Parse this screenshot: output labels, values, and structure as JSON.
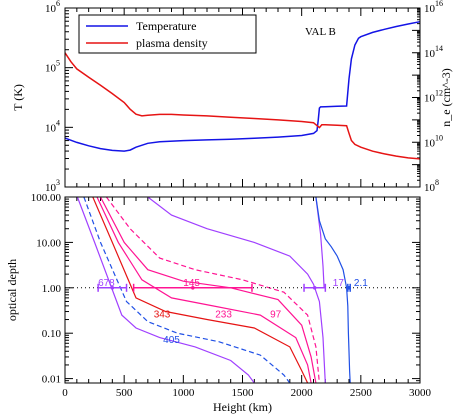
{
  "chart_data": [
    {
      "type": "line",
      "panel": "top",
      "annotation": "VAL B",
      "xlim": [
        0,
        3000
      ],
      "ylim_left": [
        1000,
        1000000
      ],
      "ylim_right": [
        100000000,
        10000000000000000
      ],
      "yscale": "log",
      "grid": false,
      "legend_position": "top-left",
      "ylabel": "T (K)",
      "ylabel_right": "n_e (cm^-3)",
      "yticks_left": [
        {
          "base": "10",
          "exp": "3",
          "value": 1000
        },
        {
          "base": "10",
          "exp": "4",
          "value": 10000
        },
        {
          "base": "10",
          "exp": "5",
          "value": 100000
        },
        {
          "base": "10",
          "exp": "6",
          "value": 1000000
        }
      ],
      "yticks_right": [
        {
          "base": "10",
          "exp": "8",
          "value": 100000000
        },
        {
          "base": "10",
          "exp": "10",
          "value": 10000000000
        },
        {
          "base": "10",
          "exp": "12",
          "value": 1000000000000
        },
        {
          "base": "10",
          "exp": "14",
          "value": 100000000000000
        },
        {
          "base": "10",
          "exp": "16",
          "value": 10000000000000000
        }
      ],
      "series": [
        {
          "name": "Temperature",
          "color": "#1414e6",
          "axis": "left",
          "x": [
            0,
            100,
            200,
            300,
            400,
            500,
            550,
            600,
            700,
            800,
            1000,
            1200,
            1400,
            1600,
            1800,
            2000,
            2100,
            2130,
            2140,
            2150,
            2160,
            2200,
            2300,
            2380,
            2400,
            2420,
            2450,
            2480,
            2500,
            2600,
            2700,
            2800,
            2900,
            3000
          ],
          "y": [
            6600,
            5600,
            4900,
            4400,
            4100,
            4000,
            4150,
            4650,
            5400,
            5750,
            6000,
            6150,
            6300,
            6550,
            6850,
            7300,
            7900,
            8800,
            13000,
            21000,
            22000,
            22200,
            22500,
            22800,
            65000,
            140000,
            240000,
            310000,
            330000,
            390000,
            440000,
            490000,
            540000,
            590000
          ]
        },
        {
          "name": "plasma density",
          "color": "#e61414",
          "axis": "right",
          "x": [
            0,
            50,
            100,
            200,
            300,
            400,
            500,
            550,
            600,
            650,
            700,
            800,
            900,
            1000,
            1200,
            1400,
            1600,
            1800,
            2000,
            2100,
            2150,
            2170,
            2200,
            2300,
            2380,
            2400,
            2420,
            2450,
            2500,
            2600,
            2700,
            2800,
            2900,
            3000
          ],
          "y": [
            100000000000000,
            40000000000000,
            19000000000000,
            8000000000000,
            3500000000000,
            1500000000000,
            600000000000,
            300000000000,
            180000000000,
            150000000000,
            160000000000,
            175000000000,
            175000000000,
            165000000000,
            150000000000,
            130000000000,
            115000000000,
            100000000000,
            85000000000,
            75000000000,
            45000000000,
            60000000000,
            60000000000,
            58000000000,
            55000000000,
            25000000000,
            12000000000,
            8000000000,
            6000000000,
            4000000000,
            3000000000,
            2400000000,
            2000000000,
            1800000000
          ]
        }
      ]
    },
    {
      "type": "line",
      "panel": "bottom",
      "xlabel": "Height (km)",
      "ylabel": "optical depth",
      "xlim": [
        0,
        3000
      ],
      "ylim": [
        0.008,
        100
      ],
      "yscale": "log",
      "grid": false,
      "reference_line": {
        "y": 1.0,
        "style": "dotted",
        "color": "#000000"
      },
      "xticks": [
        {
          "label": "0",
          "value": 0
        },
        {
          "label": "500",
          "value": 500
        },
        {
          "label": "1000",
          "value": 1000
        },
        {
          "label": "1500",
          "value": 1500
        },
        {
          "label": "2000",
          "value": 2000
        },
        {
          "label": "2500",
          "value": 2500
        },
        {
          "label": "3000",
          "value": 3000
        }
      ],
      "yticks": [
        {
          "label": "0.01",
          "value": 0.01
        },
        {
          "label": "0.10",
          "value": 0.1
        },
        {
          "label": "1.00",
          "value": 1
        },
        {
          "label": "10.00",
          "value": 10
        },
        {
          "label": "100.00",
          "value": 100
        }
      ],
      "series": [
        {
          "color": "#a040ff",
          "dash": false,
          "x": [
            105,
            250,
            480,
            600,
            800,
            1100,
            1400,
            1550,
            1600
          ],
          "y": [
            100,
            10,
            0.25,
            0.13,
            0.08,
            0.05,
            0.025,
            0.012,
            0.008
          ]
        },
        {
          "color": "#2050e6",
          "dash": true,
          "x": [
            160,
            300,
            520,
            700,
            950,
            1300,
            1650,
            1850,
            1900
          ],
          "y": [
            100,
            10,
            0.5,
            0.18,
            0.1,
            0.065,
            0.033,
            0.012,
            0.008
          ]
        },
        {
          "color": "#e61414",
          "dash": false,
          "x": [
            235,
            400,
            600,
            850,
            1200,
            1600,
            1900,
            2000,
            2050
          ],
          "y": [
            100,
            10,
            0.6,
            0.3,
            0.2,
            0.13,
            0.05,
            0.015,
            0.008
          ]
        },
        {
          "color": "#ff1493",
          "dash": false,
          "x": [
            270,
            450,
            650,
            900,
            1250,
            1650,
            1950,
            2050,
            2080
          ],
          "y": [
            100,
            10,
            1.5,
            0.6,
            0.4,
            0.25,
            0.08,
            0.02,
            0.008
          ]
        },
        {
          "color": "#ff1493",
          "dash": false,
          "x": [
            300,
            500,
            700,
            1000,
            1400,
            1800,
            2000,
            2080,
            2120
          ],
          "y": [
            100,
            10,
            2.5,
            1.4,
            1.0,
            0.55,
            0.15,
            0.03,
            0.008
          ]
        },
        {
          "color": "#ff1493",
          "dash": true,
          "x": [
            350,
            550,
            800,
            1100,
            1500,
            1850,
            2050,
            2120,
            2150
          ],
          "y": [
            100,
            20,
            4.5,
            2.5,
            1.5,
            0.8,
            0.25,
            0.05,
            0.008
          ]
        },
        {
          "color": "#a040ff",
          "dash": false,
          "x": [
            700,
            900,
            1200,
            1600,
            1900,
            2050,
            2100,
            2150,
            2180,
            2200
          ],
          "y": [
            100,
            40,
            20,
            10,
            5,
            2,
            1.2,
            0.5,
            0.08,
            0.008
          ]
        },
        {
          "color": "#a040ff",
          "dash": false,
          "x": [
            2120,
            2135,
            2160,
            2180,
            2190
          ],
          "y": [
            100,
            50,
            15,
            3,
            1
          ]
        },
        {
          "color": "#2050e6",
          "dash": false,
          "x": [
            2120,
            2150,
            2200,
            2250,
            2300,
            2350,
            2380,
            2390,
            2395,
            2400,
            2405,
            2410
          ],
          "y": [
            100,
            30,
            12,
            8,
            5,
            2.5,
            1.0,
            0.4,
            0.1,
            0.04,
            0.015,
            0.008
          ]
        }
      ],
      "annotations": [
        {
          "text": "678",
          "x": 350,
          "y": 1.0,
          "color": "#a040ff"
        },
        {
          "text": "145",
          "x": 1070,
          "y": 1.0,
          "color": "#ff1493"
        },
        {
          "text": "343",
          "x": 820,
          "y": 0.2,
          "color": "#e61414"
        },
        {
          "text": "233",
          "x": 1340,
          "y": 0.2,
          "color": "#ff1493"
        },
        {
          "text": "97",
          "x": 1780,
          "y": 0.2,
          "color": "#ff1493"
        },
        {
          "text": "405",
          "x": 900,
          "y": 0.055,
          "color": "#2050e6"
        },
        {
          "text": "17",
          "x": 2310,
          "y": 1.0,
          "color": "#a040ff"
        },
        {
          "text": "2.1",
          "x": 2500,
          "y": 1.0,
          "color": "#2050e6"
        }
      ],
      "error_bars": [
        {
          "color": "#a040ff",
          "x0": 280,
          "x1": 520,
          "y": 1.0
        },
        {
          "color": "#ff1493",
          "x0": 580,
          "x1": 1580,
          "y": 1.0
        },
        {
          "color": "#a040ff",
          "x0": 2020,
          "x1": 2200,
          "y": 1.0
        },
        {
          "color": "#2050e6",
          "x0": 2390,
          "x1": 2410,
          "y": 1.0
        }
      ]
    }
  ]
}
